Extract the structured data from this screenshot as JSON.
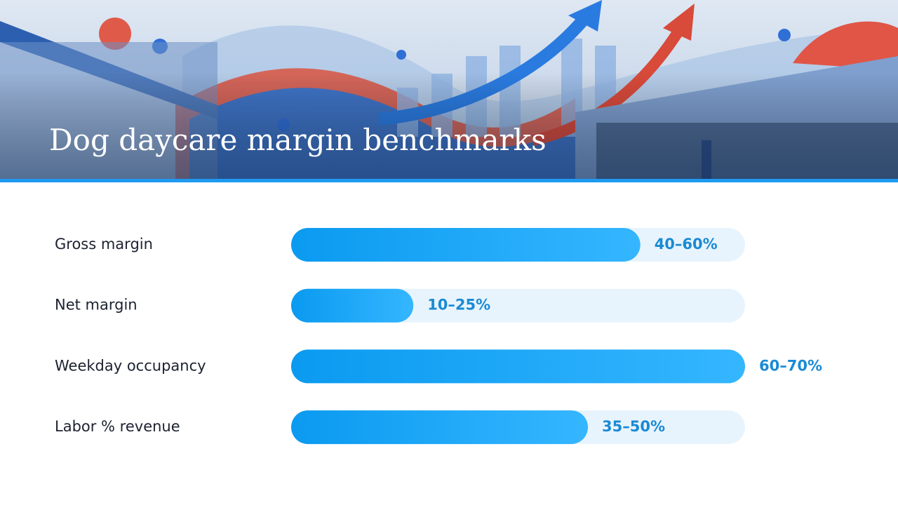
{
  "chart_data": {
    "type": "range-bar",
    "title": "Dog daycare margin benchmarks",
    "categories": [
      "Gross margin",
      "Net margin",
      "Weekday occupancy",
      "Labor % revenue"
    ],
    "low": [
      40,
      10,
      60,
      35
    ],
    "high": [
      60,
      25,
      70,
      50
    ],
    "value_labels": [
      "40–60%",
      "10–25%",
      "60–70%",
      "35–50%"
    ],
    "color": "#12a2f2"
  }
}
